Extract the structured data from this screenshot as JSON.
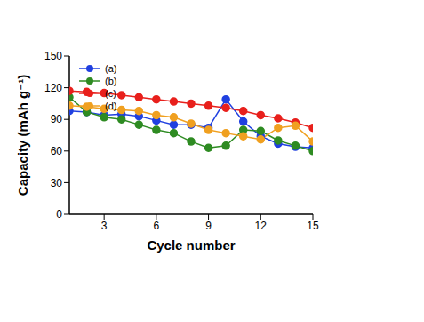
{
  "chart_data": {
    "type": "line",
    "x_label": "Cycle number",
    "y_label": "Capacity (mAh g⁻¹)",
    "x": [
      1,
      2,
      3,
      4,
      5,
      6,
      7,
      8,
      9,
      10,
      11,
      12,
      13,
      14,
      15
    ],
    "xlim": [
      1,
      15
    ],
    "xticks": [
      3,
      6,
      9,
      12,
      15
    ],
    "ylim": [
      0,
      150
    ],
    "yticks": [
      0,
      30,
      60,
      90,
      120,
      150
    ],
    "legend": "upper left",
    "grid": false,
    "series": [
      {
        "name": "(a)",
        "color": "#2040e0",
        "marker": "circle",
        "values": [
          98,
          97,
          94,
          95,
          93,
          89,
          85,
          85,
          82,
          109,
          88,
          74,
          67,
          64,
          63
        ]
      },
      {
        "name": "(b)",
        "color": "#2e8b22",
        "marker": "circle",
        "values": [
          111,
          97,
          92,
          90,
          85,
          80,
          77,
          69,
          63,
          65,
          80,
          79,
          70,
          65,
          60
        ]
      },
      {
        "name": "(c)",
        "color": "#e8201c",
        "marker": "circle",
        "values": [
          117,
          116,
          115,
          113,
          111,
          109,
          107,
          105,
          103,
          101,
          98,
          94,
          91,
          87,
          82
        ]
      },
      {
        "name": "(d)",
        "color": "#f0a020",
        "marker": "circle",
        "values": [
          103,
          102,
          100,
          99,
          98,
          94,
          92,
          86,
          80,
          77,
          74,
          71,
          82,
          84,
          69
        ]
      }
    ]
  }
}
